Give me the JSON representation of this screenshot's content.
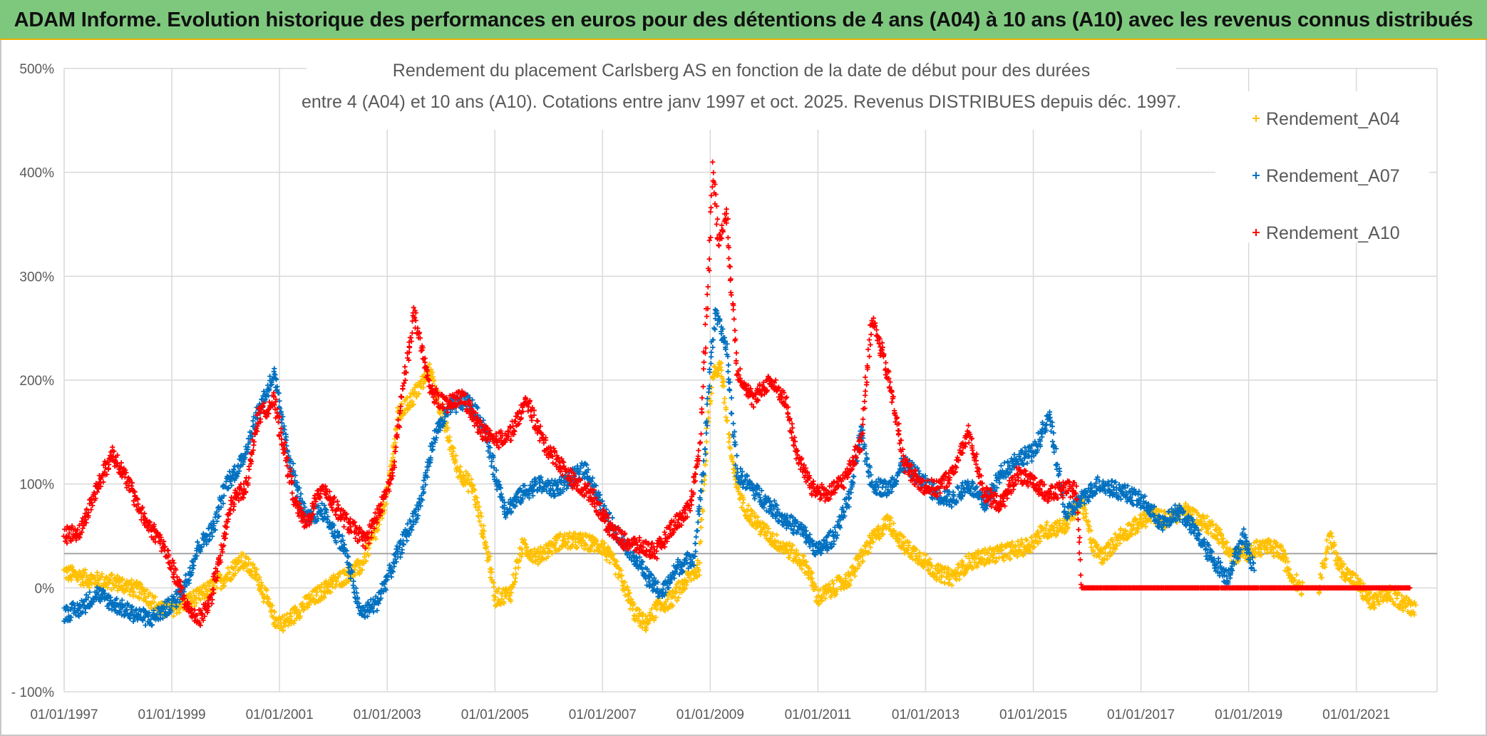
{
  "banner": {
    "title": "ADAM Informe. Evolution historique des performances en euros pour des détentions de 4 ans (A04) à 10 ans (A10) avec les revenus connus distribués"
  },
  "chart_data": {
    "type": "scatter",
    "title_line1": "Rendement du placement Carlsberg AS en fonction de la date de début pour des durées",
    "title_line2": "entre 4 (A04) et 10 ans (A10). Cotations entre janv 1997 et oct. 2025. Revenus DISTRIBUES depuis déc. 1997.",
    "xlabel": "",
    "ylabel": "",
    "xlim": [
      "01/01/1997",
      "01/07/2022"
    ],
    "ylim": [
      -100,
      500
    ],
    "x_ticks": [
      "01/01/1997",
      "01/01/1999",
      "01/01/2001",
      "01/01/2003",
      "01/01/2005",
      "01/01/2007",
      "01/01/2009",
      "01/01/2011",
      "01/01/2013",
      "01/01/2015",
      "01/01/2017",
      "01/01/2019",
      "01/01/2021"
    ],
    "y_ticks": [
      "500%",
      "400%",
      "300%",
      "200%",
      "100%",
      "0%",
      "- 100%"
    ],
    "y_tick_values": [
      500,
      400,
      300,
      200,
      100,
      0,
      -100
    ],
    "reference_line": 33,
    "grid": true,
    "legend_position": "top-right",
    "marker": "+",
    "series": [
      {
        "name": "Rendement_A04",
        "color": "#ffc000",
        "points": [
          [
            1997.0,
            15
          ],
          [
            1997.5,
            8
          ],
          [
            1998.0,
            5
          ],
          [
            1998.5,
            -5
          ],
          [
            1998.8,
            -22
          ],
          [
            1999.0,
            -20
          ],
          [
            1999.5,
            -8
          ],
          [
            2000.0,
            10
          ],
          [
            2000.3,
            28
          ],
          [
            2000.6,
            10
          ],
          [
            2000.9,
            -30
          ],
          [
            2001.1,
            -34
          ],
          [
            2001.5,
            -15
          ],
          [
            2002.0,
            5
          ],
          [
            2002.5,
            20
          ],
          [
            2002.8,
            55
          ],
          [
            2003.0,
            90
          ],
          [
            2003.2,
            165
          ],
          [
            2003.5,
            185
          ],
          [
            2003.8,
            210
          ],
          [
            2004.0,
            170
          ],
          [
            2004.3,
            115
          ],
          [
            2004.6,
            95
          ],
          [
            2004.9,
            25
          ],
          [
            2005.0,
            -10
          ],
          [
            2005.3,
            -5
          ],
          [
            2005.5,
            40
          ],
          [
            2005.8,
            30
          ],
          [
            2006.2,
            45
          ],
          [
            2006.6,
            45
          ],
          [
            2007.0,
            40
          ],
          [
            2007.3,
            15
          ],
          [
            2007.6,
            -25
          ],
          [
            2007.8,
            -35
          ],
          [
            2008.0,
            -20
          ],
          [
            2008.3,
            -10
          ],
          [
            2008.6,
            10
          ],
          [
            2008.8,
            20
          ],
          [
            2008.95,
            160
          ],
          [
            2009.05,
            205
          ],
          [
            2009.2,
            215
          ],
          [
            2009.4,
            120
          ],
          [
            2009.6,
            80
          ],
          [
            2009.9,
            60
          ],
          [
            2010.2,
            45
          ],
          [
            2010.5,
            35
          ],
          [
            2010.8,
            20
          ],
          [
            2011.0,
            -10
          ],
          [
            2011.3,
            0
          ],
          [
            2011.6,
            10
          ],
          [
            2011.8,
            30
          ],
          [
            2012.0,
            45
          ],
          [
            2012.3,
            65
          ],
          [
            2012.6,
            40
          ],
          [
            2012.9,
            30
          ],
          [
            2013.2,
            15
          ],
          [
            2013.5,
            10
          ],
          [
            2013.8,
            25
          ],
          [
            2014.1,
            30
          ],
          [
            2014.5,
            35
          ],
          [
            2014.9,
            40
          ],
          [
            2015.2,
            55
          ],
          [
            2015.6,
            60
          ],
          [
            2015.9,
            85
          ],
          [
            2016.1,
            40
          ],
          [
            2016.3,
            30
          ],
          [
            2016.6,
            50
          ],
          [
            2016.9,
            60
          ],
          [
            2017.2,
            70
          ],
          [
            2017.5,
            65
          ],
          [
            2017.8,
            75
          ],
          [
            2018.1,
            65
          ],
          [
            2018.4,
            55
          ],
          [
            2018.7,
            30
          ],
          [
            2019.0,
            35
          ],
          [
            2019.3,
            40
          ],
          [
            2019.6,
            35
          ],
          [
            2019.8,
            10
          ],
          [
            2020.0,
            0
          ],
          [
            2020.3,
            0
          ],
          [
            2020.5,
            50
          ],
          [
            2020.7,
            20
          ],
          [
            2021.0,
            5
          ],
          [
            2021.3,
            -15
          ],
          [
            2021.6,
            -5
          ],
          [
            2021.9,
            -15
          ],
          [
            2022.1,
            -20
          ]
        ]
      },
      {
        "name": "Rendement_A07",
        "color": "#0070c0",
        "points": [
          [
            1997.0,
            -25
          ],
          [
            1997.3,
            -20
          ],
          [
            1997.6,
            -5
          ],
          [
            1997.9,
            -15
          ],
          [
            1998.3,
            -25
          ],
          [
            1998.6,
            -30
          ],
          [
            1998.9,
            -20
          ],
          [
            1999.1,
            -10
          ],
          [
            1999.3,
            10
          ],
          [
            1999.5,
            40
          ],
          [
            1999.8,
            60
          ],
          [
            2000.0,
            100
          ],
          [
            2000.3,
            120
          ],
          [
            2000.6,
            170
          ],
          [
            2000.9,
            205
          ],
          [
            2001.1,
            145
          ],
          [
            2001.3,
            100
          ],
          [
            2001.5,
            65
          ],
          [
            2001.8,
            75
          ],
          [
            2002.0,
            55
          ],
          [
            2002.2,
            40
          ],
          [
            2002.5,
            -25
          ],
          [
            2002.8,
            -15
          ],
          [
            2003.0,
            10
          ],
          [
            2003.3,
            45
          ],
          [
            2003.6,
            80
          ],
          [
            2003.9,
            150
          ],
          [
            2004.2,
            175
          ],
          [
            2004.5,
            180
          ],
          [
            2004.8,
            155
          ],
          [
            2005.0,
            110
          ],
          [
            2005.2,
            75
          ],
          [
            2005.5,
            90
          ],
          [
            2005.8,
            100
          ],
          [
            2006.1,
            95
          ],
          [
            2006.4,
            105
          ],
          [
            2006.7,
            115
          ],
          [
            2007.0,
            75
          ],
          [
            2007.3,
            50
          ],
          [
            2007.6,
            30
          ],
          [
            2007.9,
            5
          ],
          [
            2008.1,
            -5
          ],
          [
            2008.4,
            20
          ],
          [
            2008.7,
            30
          ],
          [
            2008.9,
            130
          ],
          [
            2009.0,
            215
          ],
          [
            2009.1,
            265
          ],
          [
            2009.3,
            230
          ],
          [
            2009.5,
            110
          ],
          [
            2009.8,
            95
          ],
          [
            2010.1,
            80
          ],
          [
            2010.4,
            65
          ],
          [
            2010.7,
            55
          ],
          [
            2011.0,
            35
          ],
          [
            2011.3,
            50
          ],
          [
            2011.6,
            90
          ],
          [
            2011.8,
            150
          ],
          [
            2012.0,
            100
          ],
          [
            2012.3,
            95
          ],
          [
            2012.6,
            120
          ],
          [
            2012.9,
            105
          ],
          [
            2013.2,
            90
          ],
          [
            2013.5,
            85
          ],
          [
            2013.8,
            100
          ],
          [
            2014.1,
            80
          ],
          [
            2014.4,
            110
          ],
          [
            2014.7,
            125
          ],
          [
            2015.0,
            130
          ],
          [
            2015.3,
            165
          ],
          [
            2015.6,
            70
          ],
          [
            2015.9,
            85
          ],
          [
            2016.2,
            100
          ],
          [
            2016.5,
            95
          ],
          [
            2016.8,
            90
          ],
          [
            2017.1,
            80
          ],
          [
            2017.4,
            60
          ],
          [
            2017.7,
            75
          ],
          [
            2018.0,
            55
          ],
          [
            2018.3,
            30
          ],
          [
            2018.6,
            10
          ],
          [
            2018.9,
            50
          ],
          [
            2019.1,
            20
          ]
        ]
      },
      {
        "name": "Rendement_A10",
        "color": "#ff0000",
        "points": [
          [
            1997.0,
            50
          ],
          [
            1997.3,
            55
          ],
          [
            1997.6,
            95
          ],
          [
            1997.9,
            130
          ],
          [
            1998.2,
            100
          ],
          [
            1998.5,
            65
          ],
          [
            1998.8,
            45
          ],
          [
            1999.0,
            20
          ],
          [
            1999.3,
            -20
          ],
          [
            1999.5,
            -30
          ],
          [
            1999.7,
            -15
          ],
          [
            1999.9,
            30
          ],
          [
            2000.1,
            80
          ],
          [
            2000.4,
            100
          ],
          [
            2000.6,
            165
          ],
          [
            2000.9,
            180
          ],
          [
            2001.1,
            130
          ],
          [
            2001.3,
            80
          ],
          [
            2001.5,
            60
          ],
          [
            2001.8,
            100
          ],
          [
            2002.0,
            80
          ],
          [
            2002.3,
            60
          ],
          [
            2002.6,
            45
          ],
          [
            2002.9,
            80
          ],
          [
            2003.1,
            110
          ],
          [
            2003.3,
            195
          ],
          [
            2003.5,
            265
          ],
          [
            2003.8,
            190
          ],
          [
            2004.1,
            175
          ],
          [
            2004.4,
            185
          ],
          [
            2004.7,
            155
          ],
          [
            2005.0,
            140
          ],
          [
            2005.3,
            150
          ],
          [
            2005.6,
            180
          ],
          [
            2005.9,
            140
          ],
          [
            2006.2,
            120
          ],
          [
            2006.5,
            100
          ],
          [
            2006.8,
            90
          ],
          [
            2007.1,
            60
          ],
          [
            2007.4,
            45
          ],
          [
            2007.7,
            40
          ],
          [
            2008.0,
            35
          ],
          [
            2008.3,
            60
          ],
          [
            2008.6,
            75
          ],
          [
            2008.8,
            130
          ],
          [
            2008.95,
            280
          ],
          [
            2009.05,
            410
          ],
          [
            2009.15,
            330
          ],
          [
            2009.3,
            360
          ],
          [
            2009.5,
            210
          ],
          [
            2009.8,
            180
          ],
          [
            2010.1,
            200
          ],
          [
            2010.4,
            180
          ],
          [
            2010.6,
            130
          ],
          [
            2010.9,
            95
          ],
          [
            2011.2,
            90
          ],
          [
            2011.5,
            105
          ],
          [
            2011.8,
            140
          ],
          [
            2012.0,
            260
          ],
          [
            2012.2,
            225
          ],
          [
            2012.4,
            180
          ],
          [
            2012.6,
            120
          ],
          [
            2012.9,
            100
          ],
          [
            2013.2,
            95
          ],
          [
            2013.5,
            110
          ],
          [
            2013.8,
            150
          ],
          [
            2014.1,
            90
          ],
          [
            2014.4,
            80
          ],
          [
            2014.7,
            110
          ],
          [
            2015.0,
            100
          ],
          [
            2015.3,
            90
          ],
          [
            2015.6,
            95
          ],
          [
            2015.8,
            95
          ],
          [
            2015.9,
            0
          ],
          [
            2016.5,
            0
          ],
          [
            2017.0,
            0
          ],
          [
            2017.5,
            0
          ],
          [
            2018.0,
            0
          ],
          [
            2018.5,
            0
          ],
          [
            2019.0,
            0
          ],
          [
            2019.5,
            0
          ],
          [
            2020.0,
            0
          ],
          [
            2020.5,
            0
          ],
          [
            2021.0,
            0
          ],
          [
            2021.5,
            0
          ],
          [
            2022.0,
            0
          ]
        ]
      }
    ]
  }
}
